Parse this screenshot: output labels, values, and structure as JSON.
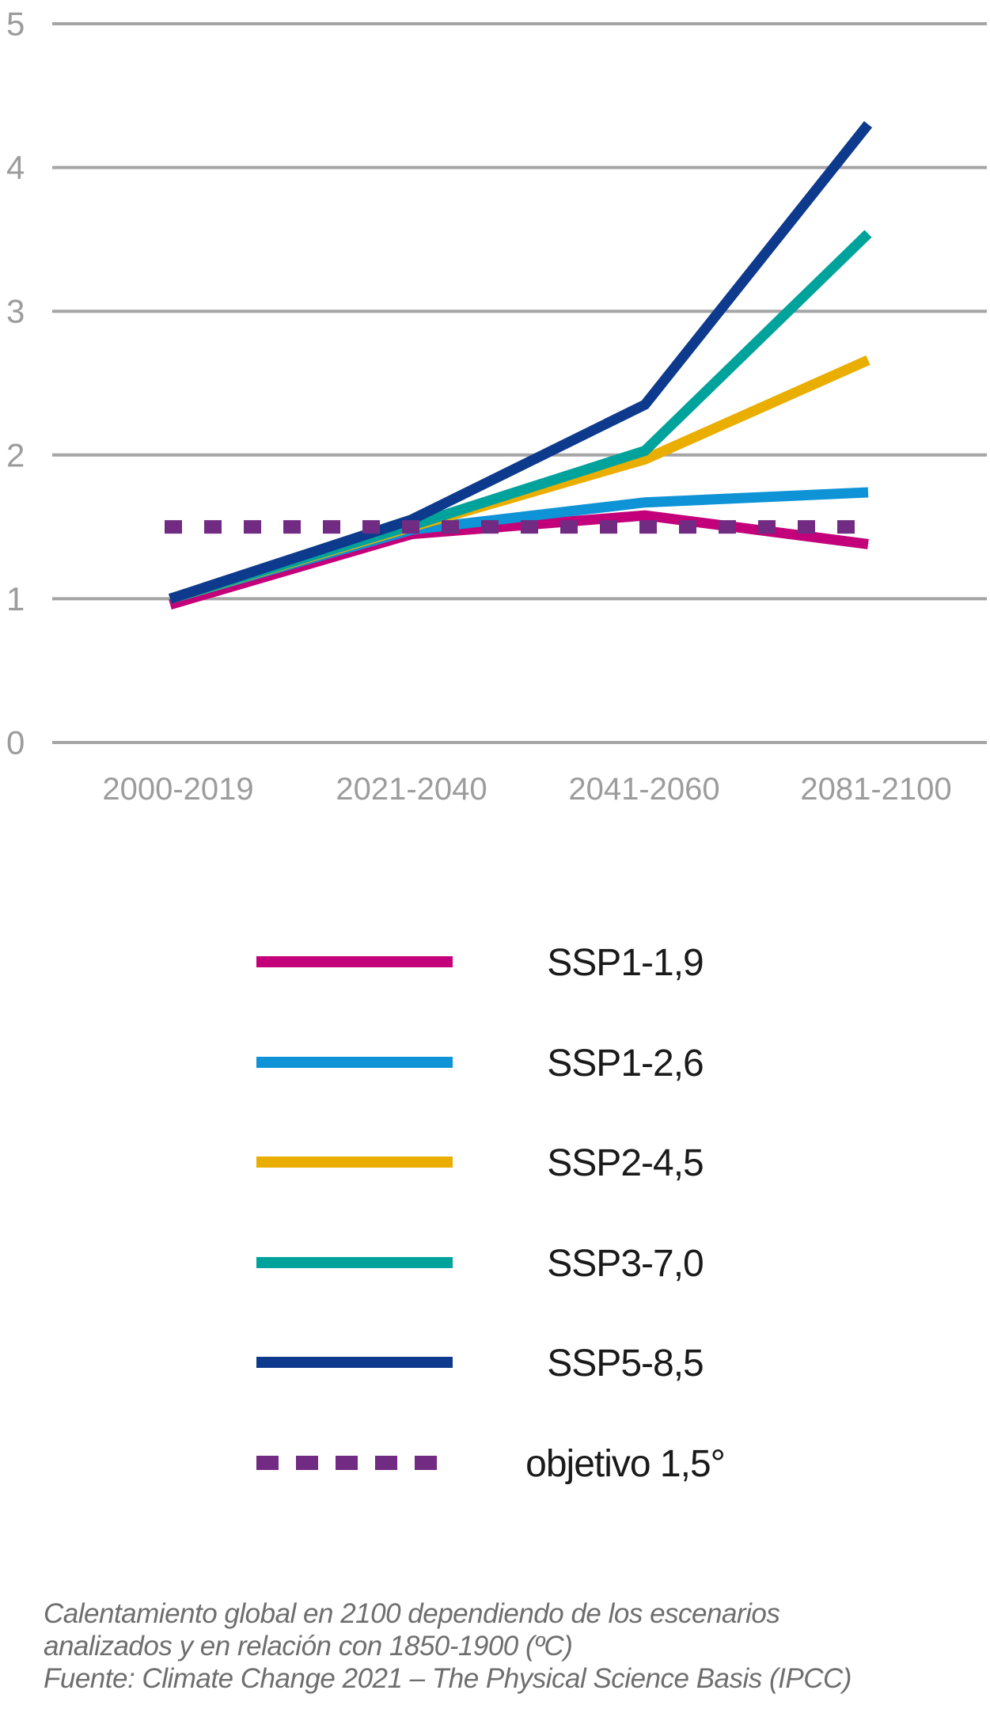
{
  "chart_data": {
    "type": "line",
    "categories": [
      "2000-2019",
      "2021-2040",
      "2041-2060",
      "2081-2100"
    ],
    "series": [
      {
        "name": "SSP1-1,9",
        "color": "#C30079",
        "values": [
          0.96,
          1.45,
          1.58,
          1.38
        ]
      },
      {
        "name": "SSP1-2,6",
        "color": "#0D93D6",
        "values": [
          1.0,
          1.48,
          1.67,
          1.74
        ]
      },
      {
        "name": "SSP2-4,5",
        "color": "#EAAE00",
        "values": [
          1.0,
          1.5,
          1.97,
          2.66
        ]
      },
      {
        "name": "SSP3-7,0",
        "color": "#00A39B",
        "values": [
          1.0,
          1.51,
          2.03,
          3.54
        ]
      },
      {
        "name": "SSP5-8,5",
        "color": "#0D3A8C",
        "values": [
          1.0,
          1.55,
          2.35,
          4.3
        ]
      }
    ],
    "target_line": {
      "name": "objetivo 1,5°",
      "color": "#722B82",
      "value": 1.5,
      "style": "dashed"
    },
    "y_ticks": [
      "0",
      "1",
      "2",
      "3",
      "4",
      "5"
    ],
    "ylim": [
      0,
      5
    ],
    "grid": true,
    "legend_position": "below-chart",
    "title": "",
    "xlabel": "",
    "ylabel": ""
  },
  "caption": {
    "line1": "Calentamiento global en 2100 dependiendo de los escenarios",
    "line2": "analizados y en relación con 1850-1900 (ºC)",
    "line3": "Fuente: Climate Change 2021 – The Physical Science Basis (IPCC)"
  },
  "colors": {
    "background": "#FFFFFF",
    "grid": "#A5A5A5",
    "axis_text": "#9C9C9C",
    "legend_text": "#1A1A1A",
    "caption_text": "#6E6E6E"
  }
}
